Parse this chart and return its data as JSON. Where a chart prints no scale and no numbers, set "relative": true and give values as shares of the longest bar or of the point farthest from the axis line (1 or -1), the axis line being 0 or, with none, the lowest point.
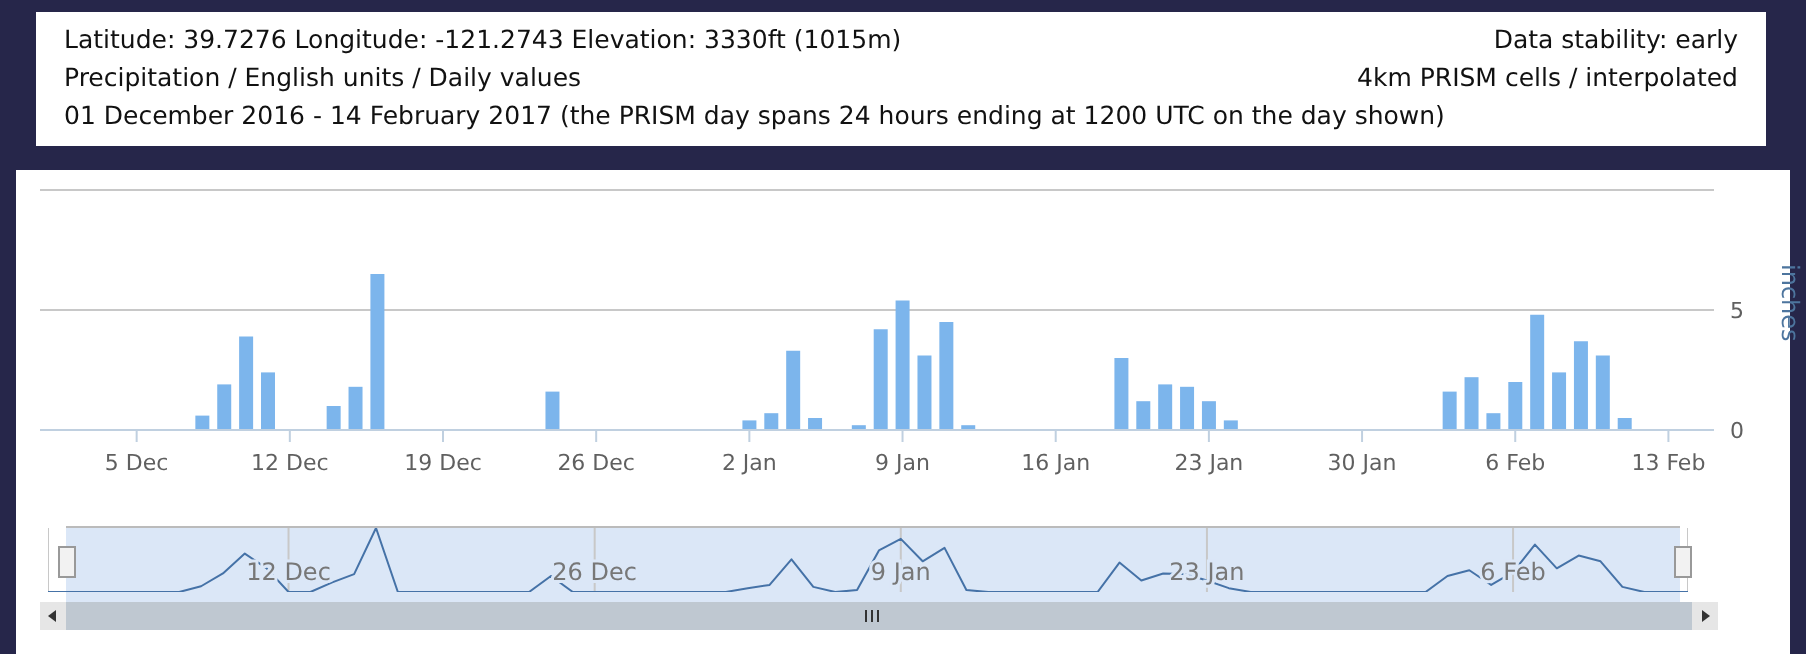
{
  "chart_data": [
    {
      "type": "bar",
      "title": "Latitude: 39.7276   Longitude: -121.2743   Elevation: 3330ft (1015m)",
      "subtitle": "Precipitation / English units / Daily values",
      "annotations": [
        "01 December 2016 - 14 February 2017 (the PRISM day spans 24 hours ending at 1200 UTC on the day shown)",
        "Data stability: early",
        "4km PRISM cells / interpolated"
      ],
      "ylabel": "inches",
      "color": "#7cb5ec",
      "grid": "y",
      "x": [
        "2016-12-01",
        "2016-12-02",
        "2016-12-03",
        "2016-12-04",
        "2016-12-05",
        "2016-12-06",
        "2016-12-07",
        "2016-12-08",
        "2016-12-09",
        "2016-12-10",
        "2016-12-11",
        "2016-12-12",
        "2016-12-13",
        "2016-12-14",
        "2016-12-15",
        "2016-12-16",
        "2016-12-17",
        "2016-12-18",
        "2016-12-19",
        "2016-12-20",
        "2016-12-21",
        "2016-12-22",
        "2016-12-23",
        "2016-12-24",
        "2016-12-25",
        "2016-12-26",
        "2016-12-27",
        "2016-12-28",
        "2016-12-29",
        "2016-12-30",
        "2016-12-31",
        "2017-01-01",
        "2017-01-02",
        "2017-01-03",
        "2017-01-04",
        "2017-01-05",
        "2017-01-06",
        "2017-01-07",
        "2017-01-08",
        "2017-01-09",
        "2017-01-10",
        "2017-01-11",
        "2017-01-12",
        "2017-01-13",
        "2017-01-14",
        "2017-01-15",
        "2017-01-16",
        "2017-01-17",
        "2017-01-18",
        "2017-01-19",
        "2017-01-20",
        "2017-01-21",
        "2017-01-22",
        "2017-01-23",
        "2017-01-24",
        "2017-01-25",
        "2017-01-26",
        "2017-01-27",
        "2017-01-28",
        "2017-01-29",
        "2017-01-30",
        "2017-01-31",
        "2017-02-01",
        "2017-02-02",
        "2017-02-03",
        "2017-02-04",
        "2017-02-05",
        "2017-02-06",
        "2017-02-07",
        "2017-02-08",
        "2017-02-09",
        "2017-02-10",
        "2017-02-11",
        "2017-02-12",
        "2017-02-13",
        "2017-02-14"
      ],
      "values": [
        0,
        0,
        0,
        0,
        0,
        0,
        0,
        0.6,
        1.9,
        3.9,
        2.4,
        0,
        0,
        1.0,
        1.8,
        6.5,
        0,
        0,
        0,
        0,
        0,
        0,
        0,
        1.6,
        0,
        0,
        0,
        0,
        0,
        0,
        0,
        0,
        0.4,
        0.7,
        3.3,
        0.5,
        0,
        0.2,
        4.2,
        5.4,
        3.1,
        4.5,
        0.2,
        0,
        0,
        0,
        0,
        0,
        0,
        3.0,
        1.2,
        1.9,
        1.8,
        1.2,
        0.4,
        0,
        0,
        0,
        0,
        0,
        0,
        0,
        0,
        0,
        1.6,
        2.2,
        0.7,
        2.0,
        4.8,
        2.4,
        3.7,
        3.1,
        0.5,
        0,
        0,
        0
      ],
      "xlim": [
        "2016-11-30T14:00",
        "2017-02-15T02:00"
      ],
      "xticks": [
        {
          "value": "2016-12-05",
          "label": "5 Dec"
        },
        {
          "value": "2016-12-12",
          "label": "12 Dec"
        },
        {
          "value": "2016-12-19",
          "label": "19 Dec"
        },
        {
          "value": "2016-12-26",
          "label": "26 Dec"
        },
        {
          "value": "2017-01-02",
          "label": "2 Jan"
        },
        {
          "value": "2017-01-09",
          "label": "9 Jan"
        },
        {
          "value": "2017-01-16",
          "label": "16 Jan"
        },
        {
          "value": "2017-01-23",
          "label": "23 Jan"
        },
        {
          "value": "2017-01-30",
          "label": "30 Jan"
        },
        {
          "value": "2017-02-06",
          "label": "6 Feb"
        },
        {
          "value": "2017-02-13",
          "label": "13 Feb"
        }
      ],
      "ylim": [
        0,
        10
      ],
      "yticks": [
        0,
        5,
        {
          "value": 10,
          "label": null
        }
      ]
    },
    {
      "type": "line",
      "relative": true,
      "color": "#4572a7",
      "grid": "x",
      "tick_labels": "x",
      "x": [
        "2016-12-01",
        "2016-12-02",
        "2016-12-03",
        "2016-12-04",
        "2016-12-05",
        "2016-12-06",
        "2016-12-07",
        "2016-12-08",
        "2016-12-09",
        "2016-12-10",
        "2016-12-11",
        "2016-12-12",
        "2016-12-13",
        "2016-12-14",
        "2016-12-15",
        "2016-12-16",
        "2016-12-17",
        "2016-12-18",
        "2016-12-19",
        "2016-12-20",
        "2016-12-21",
        "2016-12-22",
        "2016-12-23",
        "2016-12-24",
        "2016-12-25",
        "2016-12-26",
        "2016-12-27",
        "2016-12-28",
        "2016-12-29",
        "2016-12-30",
        "2016-12-31",
        "2017-01-01",
        "2017-01-02",
        "2017-01-03",
        "2017-01-04",
        "2017-01-05",
        "2017-01-06",
        "2017-01-07",
        "2017-01-08",
        "2017-01-09",
        "2017-01-10",
        "2017-01-11",
        "2017-01-12",
        "2017-01-13",
        "2017-01-14",
        "2017-01-15",
        "2017-01-16",
        "2017-01-17",
        "2017-01-18",
        "2017-01-19",
        "2017-01-20",
        "2017-01-21",
        "2017-01-22",
        "2017-01-23",
        "2017-01-24",
        "2017-01-25",
        "2017-01-26",
        "2017-01-27",
        "2017-01-28",
        "2017-01-29",
        "2017-01-30",
        "2017-01-31",
        "2017-02-01",
        "2017-02-02",
        "2017-02-03",
        "2017-02-04",
        "2017-02-05",
        "2017-02-06",
        "2017-02-07",
        "2017-02-08",
        "2017-02-09",
        "2017-02-10",
        "2017-02-11",
        "2017-02-12",
        "2017-02-13",
        "2017-02-14"
      ],
      "values": [
        0,
        0,
        0,
        0,
        0,
        0,
        0,
        0.09,
        0.29,
        0.6,
        0.37,
        0,
        0,
        0.15,
        0.28,
        1,
        0,
        0,
        0,
        0,
        0,
        0,
        0,
        0.25,
        0,
        0,
        0,
        0,
        0,
        0,
        0,
        0,
        0.06,
        0.11,
        0.51,
        0.08,
        0,
        0.03,
        0.65,
        0.83,
        0.48,
        0.69,
        0.03,
        0,
        0,
        0,
        0,
        0,
        0,
        0.46,
        0.18,
        0.29,
        0.28,
        0.18,
        0.06,
        0,
        0,
        0,
        0,
        0,
        0,
        0,
        0,
        0,
        0.25,
        0.34,
        0.11,
        0.31,
        0.74,
        0.37,
        0.57,
        0.48,
        0.08,
        0,
        0,
        0
      ],
      "xlim": [
        "2016-12-01",
        "2017-02-14"
      ],
      "xticks": [
        {
          "value": "2016-12-12",
          "label": "12 Dec"
        },
        {
          "value": "2016-12-26",
          "label": "26 Dec"
        },
        {
          "value": "2017-01-09",
          "label": "9 Jan"
        },
        {
          "value": "2017-01-23",
          "label": "23 Jan"
        },
        {
          "value": "2017-02-06",
          "label": "6 Feb"
        }
      ]
    }
  ]
}
